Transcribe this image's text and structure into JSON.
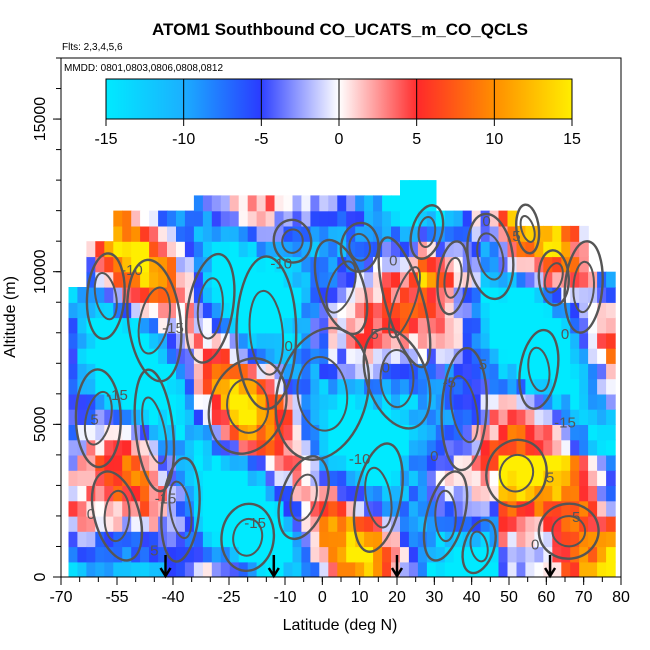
{
  "chart_data": {
    "type": "heatmap",
    "title": "ATOM1 Southbound CO_UCATS_m_CO_QCLS",
    "subtitle_flights": "Flts: 2,3,4,5,6",
    "subtitle_dates": "MMDD: 0801,0803,0806,0808,0812",
    "xlabel": "Latitude (deg N)",
    "ylabel": "Altitude (m)",
    "xlim": [
      -70,
      80
    ],
    "ylim": [
      0,
      17000
    ],
    "x_ticks": [
      -70,
      -55,
      -40,
      -25,
      -10,
      0,
      10,
      20,
      30,
      40,
      50,
      60,
      70,
      80
    ],
    "y_ticks": [
      0,
      5000,
      10000,
      15000
    ],
    "colorbar": {
      "min": -15,
      "max": 15,
      "ticks": [
        -15,
        -10,
        -5,
        0,
        5,
        10,
        15
      ],
      "colors": [
        "#00e5ff",
        "#2a3dff",
        "#ffffff",
        "#ff2a2a",
        "#ffee00"
      ]
    },
    "contour_labels": [
      {
        "text": "-10",
        "lat": -51,
        "alt": 9900
      },
      {
        "text": "-10",
        "lat": -11,
        "alt": 10100
      },
      {
        "text": "0",
        "lat": -9,
        "alt": 7400
      },
      {
        "text": "-15",
        "lat": -40,
        "alt": 8000
      },
      {
        "text": "-15",
        "lat": -55,
        "alt": 5800
      },
      {
        "text": "5",
        "lat": -61,
        "alt": 5000
      },
      {
        "text": "-15",
        "lat": -42,
        "alt": 2400
      },
      {
        "text": "0",
        "lat": -62,
        "alt": 1900
      },
      {
        "text": "5",
        "lat": -45,
        "alt": 700
      },
      {
        "text": "-15",
        "lat": -18,
        "alt": 1600
      },
      {
        "text": "0",
        "lat": 19,
        "alt": 10200
      },
      {
        "text": "0",
        "lat": 44,
        "alt": 11500
      },
      {
        "text": "5",
        "lat": 52,
        "alt": 11000
      },
      {
        "text": "5",
        "lat": 14,
        "alt": 7800
      },
      {
        "text": "0",
        "lat": 17,
        "alt": 6700
      },
      {
        "text": "5",
        "lat": 43,
        "alt": 6800
      },
      {
        "text": "-5",
        "lat": 34,
        "alt": 6200
      },
      {
        "text": "0",
        "lat": 65,
        "alt": 7800
      },
      {
        "text": "-15",
        "lat": 65,
        "alt": 4900
      },
      {
        "text": "-10",
        "lat": 10,
        "alt": 3700
      },
      {
        "text": "0",
        "lat": 30,
        "alt": 3800
      },
      {
        "text": "5",
        "lat": 61,
        "alt": 3100
      },
      {
        "text": "5",
        "lat": 68,
        "alt": 1800
      },
      {
        "text": "0",
        "lat": 57,
        "alt": 900
      }
    ],
    "arrows_lat": [
      -42,
      -13,
      20,
      61
    ],
    "grid": false
  }
}
